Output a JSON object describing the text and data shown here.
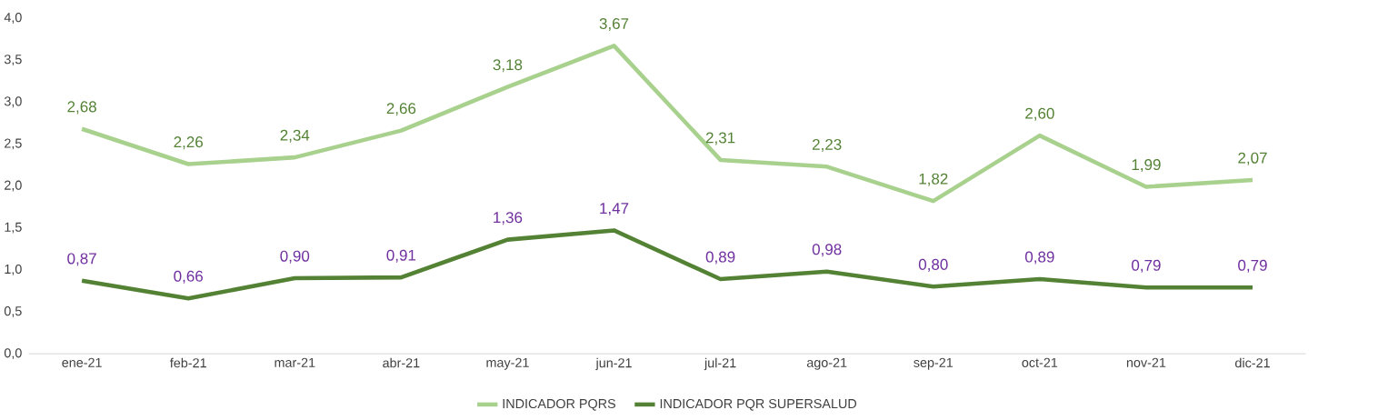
{
  "chart_data": {
    "type": "line",
    "categories": [
      "ene-21",
      "feb-21",
      "mar-21",
      "abr-21",
      "may-21",
      "jun-21",
      "jul-21",
      "ago-21",
      "sep-21",
      "oct-21",
      "nov-21",
      "dic-21"
    ],
    "series": [
      {
        "name": "INDICADOR PQRS",
        "color": "#a9d18e",
        "values": [
          2.68,
          2.26,
          2.34,
          2.66,
          3.18,
          3.67,
          2.31,
          2.23,
          1.82,
          2.6,
          1.99,
          2.07
        ],
        "value_labels": [
          "2,68",
          "2,26",
          "2,34",
          "2,66",
          "3,18",
          "3,67",
          "2,31",
          "2,23",
          "1,82",
          "2,60",
          "1,99",
          "2,07"
        ]
      },
      {
        "name": "INDICADOR PQR SUPERSALUD",
        "color": "#548235",
        "values": [
          0.87,
          0.66,
          0.9,
          0.91,
          1.36,
          1.47,
          0.89,
          0.98,
          0.8,
          0.89,
          0.79,
          0.79
        ],
        "value_labels": [
          "0,87",
          "0,66",
          "0,90",
          "0,91",
          "1,36",
          "1,47",
          "0,89",
          "0,98",
          "0,80",
          "0,89",
          "0,79",
          "0,79"
        ]
      }
    ],
    "ylim": [
      0,
      4
    ],
    "yticks": [
      {
        "value": 0,
        "label": "0,0"
      },
      {
        "value": 0.5,
        "label": "0,5"
      },
      {
        "value": 1,
        "label": "1,0"
      },
      {
        "value": 1.5,
        "label": "1,5"
      },
      {
        "value": 2,
        "label": "2,0"
      },
      {
        "value": 2.5,
        "label": "2,5"
      },
      {
        "value": 3,
        "label": "3,0"
      },
      {
        "value": 3.5,
        "label": "3,5"
      },
      {
        "value": 4,
        "label": "4,0"
      }
    ],
    "grid": false,
    "legend": "bottom",
    "marker": "none",
    "line_style": "solid"
  }
}
